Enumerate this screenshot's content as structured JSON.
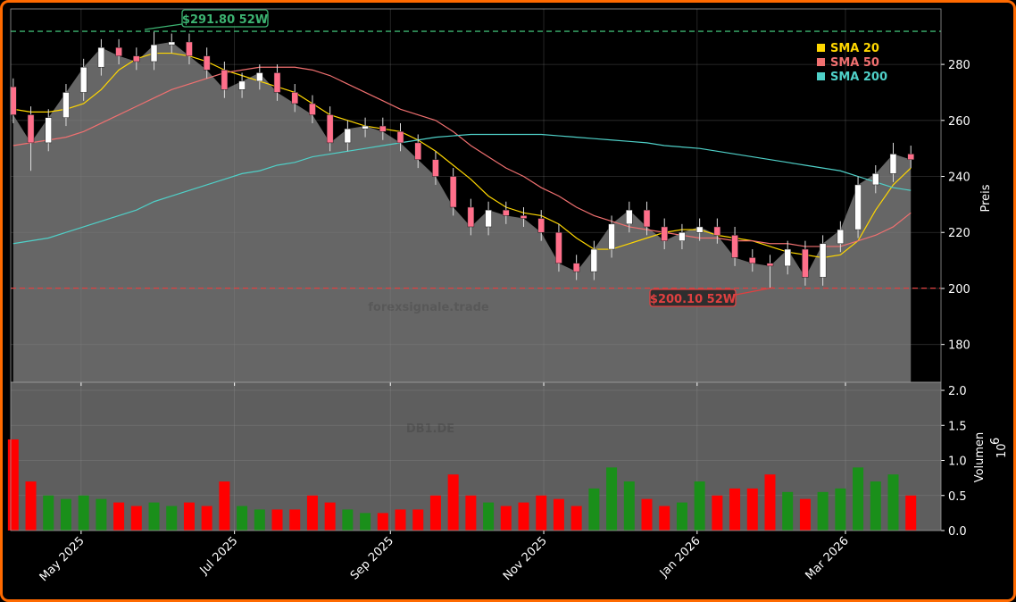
{
  "chart_data": {
    "type": "candlestick",
    "symbol": "DB1.DE",
    "watermark": "forexsignale.trade",
    "x": [
      "2025-04-04",
      "2025-04-11",
      "2025-04-18",
      "2025-04-25",
      "2025-05-02",
      "2025-05-09",
      "2025-05-16",
      "2025-05-23",
      "2025-05-30",
      "2025-06-06",
      "2025-06-13",
      "2025-06-20",
      "2025-06-27",
      "2025-07-04",
      "2025-07-11",
      "2025-07-18",
      "2025-07-25",
      "2025-08-01",
      "2025-08-08",
      "2025-08-15",
      "2025-08-22",
      "2025-08-29",
      "2025-09-05",
      "2025-09-12",
      "2025-09-19",
      "2025-09-26",
      "2025-10-03",
      "2025-10-10",
      "2025-10-17",
      "2025-10-24",
      "2025-10-31",
      "2025-11-07",
      "2025-11-14",
      "2025-11-21",
      "2025-11-28",
      "2025-12-05",
      "2025-12-12",
      "2025-12-19",
      "2025-12-26",
      "2026-01-02",
      "2026-01-09",
      "2026-01-16",
      "2026-01-23",
      "2026-01-30",
      "2026-02-06",
      "2026-02-13",
      "2026-02-20",
      "2026-02-27",
      "2026-03-06",
      "2026-03-13",
      "2026-03-20",
      "2026-03-27"
    ],
    "open": [
      272,
      262,
      252,
      261,
      270,
      279,
      286,
      283,
      281,
      287,
      288,
      283,
      278,
      271,
      274,
      277,
      270,
      266,
      262,
      252,
      257,
      258,
      256,
      252,
      246,
      240,
      229,
      222,
      228,
      226,
      225,
      220,
      209,
      206,
      214,
      223,
      228,
      222,
      217,
      220,
      222,
      219,
      211,
      209,
      208,
      214,
      204,
      216,
      221,
      237,
      241,
      248
    ],
    "high": [
      275,
      265,
      264,
      273,
      282,
      289,
      289,
      286,
      291.8,
      291,
      291,
      286,
      281,
      277,
      280,
      280,
      273,
      269,
      265,
      260,
      261,
      261,
      259,
      255,
      249,
      243,
      232,
      231,
      231,
      229,
      228,
      223,
      212,
      217,
      226,
      231,
      231,
      225,
      223,
      225,
      225,
      222,
      214,
      212,
      217,
      217,
      219,
      224,
      240,
      244,
      252,
      251
    ],
    "low": [
      259,
      242,
      249,
      258,
      267,
      276,
      280,
      278,
      278,
      284,
      280,
      275,
      268,
      268,
      271,
      267,
      263,
      259,
      249,
      249,
      254,
      253,
      249,
      243,
      237,
      226,
      219,
      219,
      223,
      222,
      217,
      206,
      203,
      203,
      211,
      220,
      219,
      214,
      214,
      217,
      216,
      208,
      206,
      200.1,
      205,
      201,
      201,
      213,
      218,
      234,
      238,
      243
    ],
    "close": [
      262,
      252,
      261,
      270,
      279,
      286,
      283,
      281,
      287,
      288,
      283,
      278,
      271,
      274,
      277,
      270,
      266,
      262,
      252,
      257,
      258,
      256,
      252,
      246,
      240,
      229,
      222,
      228,
      226,
      225,
      220,
      209,
      206,
      214,
      223,
      228,
      222,
      217,
      220,
      222,
      219,
      211,
      209,
      208,
      214,
      204,
      216,
      221,
      237,
      241,
      248,
      246
    ],
    "candle_up_color": "#ffffff",
    "candle_down_color": "#ff6f8a",
    "area_color": "#666666",
    "series": [
      {
        "name": "SMA 20",
        "color": "#ffd700",
        "values": [
          264,
          263,
          263,
          264,
          266,
          271,
          278,
          282,
          284,
          284,
          283,
          281,
          278,
          276,
          274,
          272,
          270,
          266,
          262,
          260,
          258,
          257,
          256,
          253,
          249,
          244,
          239,
          233,
          229,
          227,
          226,
          223,
          218,
          214,
          214,
          216,
          218,
          220,
          221,
          221,
          219,
          218,
          217,
          215,
          213,
          212,
          211,
          212,
          217,
          228,
          237,
          243
        ]
      },
      {
        "name": "SMA 50",
        "color": "#f07070",
        "values": [
          251,
          252,
          253,
          254,
          256,
          259,
          262,
          265,
          268,
          271,
          273,
          275,
          277,
          278,
          279,
          279,
          279,
          278,
          276,
          273,
          270,
          267,
          264,
          262,
          260,
          256,
          251,
          247,
          243,
          240,
          236,
          233,
          229,
          226,
          224,
          222,
          221,
          220,
          219,
          218,
          218,
          217,
          217,
          216,
          216,
          215,
          215,
          215,
          217,
          219,
          222,
          227
        ]
      },
      {
        "name": "SMA 200",
        "color": "#4fd0c8",
        "values": [
          216,
          217,
          218,
          220,
          222,
          224,
          226,
          228,
          231,
          233,
          235,
          237,
          239,
          241,
          242,
          244,
          245,
          247,
          248,
          249,
          250,
          251,
          252,
          253,
          254,
          254.5,
          255,
          255,
          255,
          255,
          255,
          254.5,
          254,
          253.5,
          253,
          252.5,
          252,
          251,
          250.5,
          250,
          249,
          248,
          247,
          246,
          245,
          244,
          243,
          242,
          240,
          238,
          236,
          235
        ]
      }
    ],
    "legend": "upper right",
    "annotations": [
      {
        "value": 291.8,
        "label": "$291.80 52W",
        "color": "#3cb371"
      },
      {
        "value": 200.1,
        "label": "$200.10 52W",
        "color": "#e04040"
      }
    ],
    "xlim": [
      "2025-04-03",
      "2026-04-08"
    ],
    "xticks": [
      {
        "value": "2025-05-01",
        "label": "May 2025"
      },
      {
        "value": "2025-07-01",
        "label": "Jul 2025"
      },
      {
        "value": "2025-09-01",
        "label": "Sep 2025"
      },
      {
        "value": "2025-11-01",
        "label": "Nov 2025"
      },
      {
        "value": "2026-01-01",
        "label": "Jan 2026"
      },
      {
        "value": "2026-03-01",
        "label": "Mar 2026"
      }
    ],
    "ylim": [
      166.5,
      299.8
    ],
    "yticks": [
      180,
      200,
      220,
      240,
      260,
      280
    ],
    "ylabel": "Preis",
    "grid": true,
    "volume": {
      "values": [
        1.3,
        0.7,
        0.5,
        0.45,
        0.5,
        0.45,
        0.4,
        0.35,
        0.4,
        0.35,
        0.4,
        0.35,
        0.7,
        0.35,
        0.3,
        0.3,
        0.3,
        0.5,
        0.4,
        0.3,
        0.25,
        0.25,
        0.3,
        0.3,
        0.5,
        0.8,
        0.5,
        0.4,
        0.35,
        0.4,
        0.5,
        0.45,
        0.35,
        0.6,
        0.9,
        0.7,
        0.45,
        0.35,
        0.4,
        0.7,
        0.5,
        0.6,
        0.6,
        0.8,
        0.55,
        0.45,
        0.55,
        0.6,
        0.9,
        0.7,
        0.8,
        0.5
      ],
      "up_color": "#1a8f1a",
      "down_color": "#ff0000",
      "ylim": [
        0,
        2.115
      ],
      "yticks": [
        {
          "value": 0,
          "label": "0.0"
        },
        0.5,
        {
          "value": 1,
          "label": "1.0"
        },
        1.5,
        {
          "value": 2,
          "label": "2.0"
        }
      ],
      "ylabel": "Volumen",
      "scale_base": "10",
      "scale_exponent": "6"
    }
  }
}
